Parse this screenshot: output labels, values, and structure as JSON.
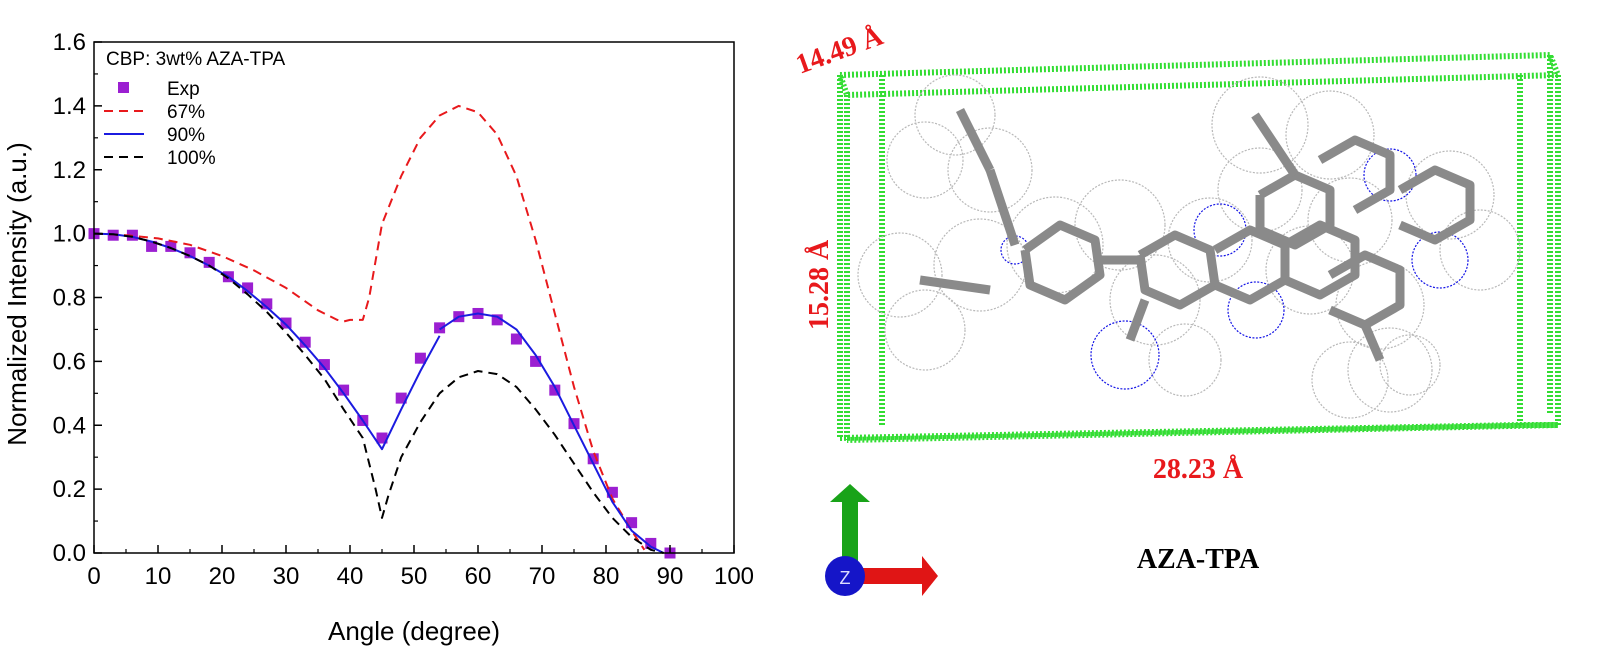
{
  "chart_data": {
    "type": "scatter",
    "xlabel": "Angle (degree)",
    "ylabel": "Normalized Intensity (a.u.)",
    "xlim": [
      0,
      100
    ],
    "ylim": [
      0,
      1.6
    ],
    "xticks": [
      "0",
      "10",
      "20",
      "30",
      "40",
      "50",
      "60",
      "70",
      "80",
      "90",
      "100"
    ],
    "yticks": [
      "0.0",
      "0.2",
      "0.4",
      "0.6",
      "0.8",
      "1.0",
      "1.2",
      "1.4",
      "1.6"
    ],
    "grid": false,
    "legend_title": "CBP: 3wt% AZA-TPA",
    "legend_position": "top-left",
    "series": [
      {
        "name": "Exp",
        "style": "markers",
        "color": "#9b1fd1",
        "x": [
          0,
          3,
          6,
          9,
          12,
          15,
          18,
          21,
          24,
          27,
          30,
          33,
          36,
          39,
          42,
          45,
          48,
          51,
          54,
          57,
          60,
          63,
          66,
          69,
          72,
          75,
          78,
          81,
          84,
          87,
          90
        ],
        "y": [
          1.0,
          0.995,
          0.995,
          0.96,
          0.96,
          0.94,
          0.91,
          0.865,
          0.83,
          0.78,
          0.72,
          0.66,
          0.59,
          0.51,
          0.415,
          0.36,
          0.485,
          0.61,
          0.705,
          0.74,
          0.75,
          0.73,
          0.67,
          0.6,
          0.51,
          0.405,
          0.295,
          0.19,
          0.095,
          0.03,
          0.0
        ]
      },
      {
        "name": "67%",
        "style": "dashed",
        "color": "#e8191c",
        "x": [
          0,
          5,
          10,
          15,
          20,
          25,
          30,
          35,
          38,
          39,
          40,
          42,
          43,
          45,
          48,
          51,
          54,
          57,
          60,
          63,
          66,
          69,
          72,
          75,
          78,
          81,
          84,
          86
        ],
        "y": [
          1.0,
          0.995,
          0.985,
          0.965,
          0.93,
          0.885,
          0.83,
          0.76,
          0.73,
          0.725,
          0.73,
          0.73,
          0.8,
          1.03,
          1.18,
          1.3,
          1.37,
          1.4,
          1.38,
          1.31,
          1.18,
          0.98,
          0.75,
          0.52,
          0.32,
          0.17,
          0.07,
          0.01
        ]
      },
      {
        "name": "90%",
        "style": "solid",
        "color": "#1b1be0",
        "x": [
          0,
          3,
          6,
          9,
          12,
          15,
          18,
          21,
          24,
          27,
          30,
          33,
          36,
          39,
          42,
          45,
          48,
          51,
          54
        ],
        "y": [
          1.0,
          0.998,
          0.99,
          0.975,
          0.955,
          0.93,
          0.9,
          0.865,
          0.82,
          0.77,
          0.715,
          0.65,
          0.58,
          0.5,
          0.415,
          0.325,
          0.45,
          0.57,
          0.68
        ],
        "x2": [
          54,
          57,
          60,
          63,
          66,
          69,
          72,
          75,
          78,
          81,
          84,
          87,
          89
        ],
        "y2": [
          0.7,
          0.74,
          0.75,
          0.74,
          0.7,
          0.62,
          0.52,
          0.4,
          0.28,
          0.16,
          0.07,
          0.02,
          0.0
        ]
      },
      {
        "name": "100%",
        "style": "dashed",
        "color": "#000000",
        "x": [
          0,
          3,
          6,
          9,
          12,
          15,
          18,
          21,
          24,
          27,
          30,
          33,
          36,
          39,
          42,
          44,
          45,
          46,
          48,
          51,
          54,
          57,
          60,
          63,
          66,
          69,
          72,
          75,
          78,
          81,
          84,
          87,
          89
        ],
        "y": [
          1.0,
          0.998,
          0.99,
          0.975,
          0.955,
          0.93,
          0.9,
          0.86,
          0.81,
          0.755,
          0.69,
          0.62,
          0.545,
          0.45,
          0.36,
          0.2,
          0.11,
          0.18,
          0.3,
          0.41,
          0.5,
          0.55,
          0.57,
          0.56,
          0.52,
          0.45,
          0.37,
          0.28,
          0.19,
          0.11,
          0.05,
          0.01,
          0.0
        ]
      }
    ]
  },
  "molecule_panel": {
    "name": "AZA-TPA",
    "dim_top": "14.49 Å",
    "dim_left": "15.28 Å",
    "dim_bottom": "28.23 Å",
    "axis_z_label": "Z",
    "box_color": "#33dd33",
    "atom_carbon_color": "#9e9e9e",
    "atom_nitrogen_color": "#1414e6"
  }
}
